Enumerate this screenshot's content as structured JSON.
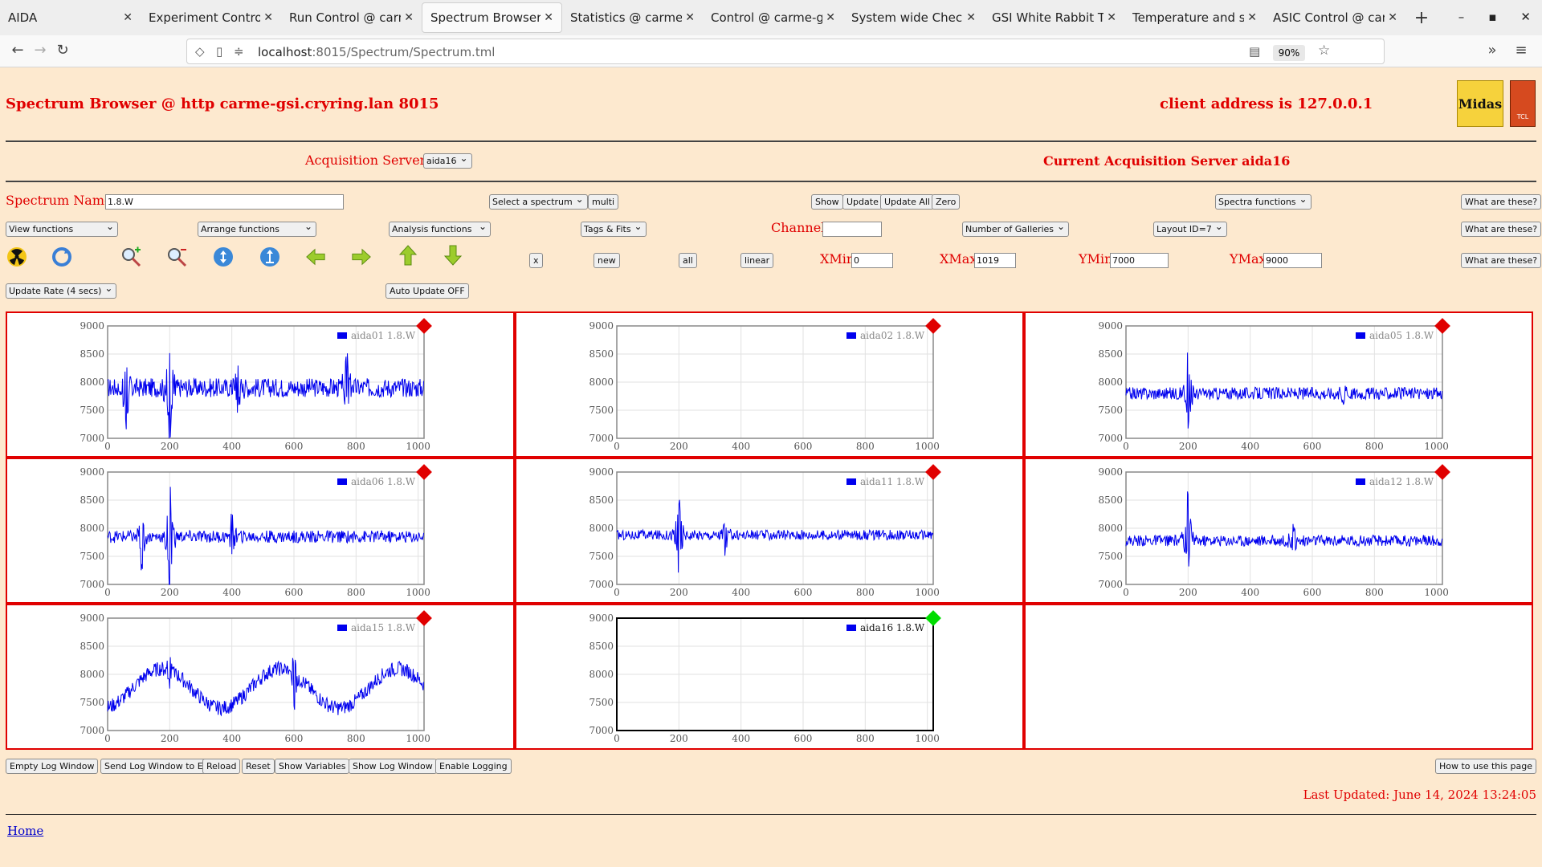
{
  "browser": {
    "tabs": [
      {
        "label": "AIDA",
        "active": false
      },
      {
        "label": "Experiment Control @",
        "active": false
      },
      {
        "label": "Run Control @ carme",
        "active": false
      },
      {
        "label": "Spectrum Browser @",
        "active": true
      },
      {
        "label": "Statistics @ carme-g",
        "active": false
      },
      {
        "label": "Control @ carme-gsi",
        "active": false
      },
      {
        "label": "System wide Checks",
        "active": false
      },
      {
        "label": "GSI White Rabbit Tim",
        "active": false
      },
      {
        "label": "Temperature and stat",
        "active": false
      },
      {
        "label": "ASIC Control @ carm",
        "active": false
      }
    ],
    "url_host": "localhost",
    "url_path": ":8015/Spectrum/Spectrum.tml",
    "zoom": "90%"
  },
  "header": {
    "title": "Spectrum Browser @ http carme-gsi.cryring.lan 8015",
    "client": "client address is 127.0.0.1",
    "logo_midas": "Midas",
    "logo_tcl": "TCL POWERED"
  },
  "server": {
    "label": "Acquisition Servers",
    "selected": "aida16",
    "current": "Current Acquisition Server aida16"
  },
  "controls": {
    "spectrum_name_label": "Spectrum Name:",
    "spectrum_name_value": "1.8.W",
    "select_spectrum": "Select a spectrum",
    "multi": "multi",
    "show": "Show",
    "update": "Update",
    "update_all": "Update All",
    "zero": "Zero",
    "spectra_functions": "Spectra functions",
    "what": "What are these?",
    "view_functions": "View functions",
    "arrange_functions": "Arrange functions",
    "analysis_functions": "Analysis functions",
    "tags_fits": "Tags & Fits",
    "channel_label": "Channel:",
    "channel_value": "",
    "num_galleries": "Number of Galleries",
    "layout_id": "Layout ID=7",
    "x_btn": "x",
    "new_btn": "new",
    "all_btn": "all",
    "linear_btn": "linear",
    "xmin_label": "XMin",
    "xmin_value": "0",
    "xmax_label": "XMax",
    "xmax_value": "1019",
    "ymin_label": "YMin",
    "ymin_value": "7000",
    "ymax_label": "YMax",
    "ymax_value": "9000",
    "update_rate": "Update Rate (4 secs)",
    "auto_update": "Auto Update OFF"
  },
  "icons": [
    "radiation-icon",
    "refresh-icon",
    "zoom-in-icon",
    "zoom-out-icon",
    "expand-vertical-icon",
    "compress-vertical-icon",
    "left-arrow-icon",
    "right-arrow-icon",
    "up-arrow-icon",
    "down-arrow-icon"
  ],
  "colors": {
    "accent_red": "#e00000",
    "series_blue": "#0000ee",
    "status_red": "#e00000",
    "status_green": "#00dd00",
    "page_bg": "#fde9cf"
  },
  "chart_data": [
    {
      "type": "line",
      "legend": "aida01 1.8.W",
      "status": "red",
      "ylim": [
        7000,
        9000
      ],
      "xlim": [
        0,
        1019
      ],
      "yticks": [
        7000,
        7500,
        8000,
        8500,
        9000
      ],
      "xticks": [
        0,
        200,
        400,
        600,
        800,
        1000
      ],
      "baseline": 7900,
      "noise": 170,
      "features": [
        [
          200,
          700,
          -900
        ],
        [
          60,
          400,
          -700
        ],
        [
          420,
          300,
          -300
        ],
        [
          770,
          500,
          -300
        ]
      ],
      "wave": 0
    },
    {
      "type": "line",
      "legend": "aida02 1.8.W",
      "status": "red",
      "ylim": [
        7000,
        9000
      ],
      "xlim": [
        0,
        1019
      ],
      "yticks": [
        7000,
        7500,
        8000,
        8500,
        9000
      ],
      "xticks": [
        0,
        200,
        400,
        600,
        800,
        1000
      ],
      "empty": true
    },
    {
      "type": "line",
      "legend": "aida05 1.8.W",
      "status": "red",
      "ylim": [
        7000,
        9000
      ],
      "xlim": [
        0,
        1019
      ],
      "yticks": [
        7000,
        7500,
        8000,
        8500,
        9000
      ],
      "xticks": [
        0,
        200,
        400,
        600,
        800,
        1000
      ],
      "baseline": 7800,
      "noise": 110,
      "features": [
        [
          200,
          700,
          -600
        ],
        [
          700,
          400,
          -100
        ]
      ],
      "wave": 0
    },
    {
      "type": "line",
      "legend": "aida06 1.8.W",
      "status": "red",
      "ylim": [
        7000,
        9000
      ],
      "xlim": [
        0,
        1019
      ],
      "yticks": [
        7000,
        7500,
        8000,
        8500,
        9000
      ],
      "xticks": [
        0,
        200,
        400,
        600,
        800,
        1000
      ],
      "baseline": 7850,
      "noise": 110,
      "features": [
        [
          200,
          800,
          -850
        ],
        [
          110,
          300,
          -500
        ],
        [
          400,
          300,
          -300
        ]
      ],
      "wave": 0
    },
    {
      "type": "line",
      "legend": "aida11 1.8.W",
      "status": "red",
      "ylim": [
        7000,
        9000
      ],
      "xlim": [
        0,
        1019
      ],
      "yticks": [
        7000,
        7500,
        8000,
        8500,
        9000
      ],
      "xticks": [
        0,
        200,
        400,
        600,
        800,
        1000
      ],
      "baseline": 7880,
      "noise": 90,
      "features": [
        [
          200,
          600,
          -600
        ],
        [
          350,
          200,
          -300
        ]
      ],
      "wave": 0
    },
    {
      "type": "line",
      "legend": "aida12 1.8.W",
      "status": "red",
      "ylim": [
        7000,
        9000
      ],
      "xlim": [
        0,
        1019
      ],
      "yticks": [
        7000,
        7500,
        8000,
        8500,
        9000
      ],
      "xticks": [
        0,
        200,
        400,
        600,
        800,
        1000
      ],
      "baseline": 7780,
      "noise": 100,
      "features": [
        [
          200,
          800,
          -450
        ],
        [
          540,
          200,
          -250
        ]
      ],
      "wave": 0
    },
    {
      "type": "line",
      "legend": "aida15 1.8.W",
      "status": "red",
      "ylim": [
        7000,
        9000
      ],
      "xlim": [
        0,
        1019
      ],
      "yticks": [
        7000,
        7500,
        8000,
        8500,
        9000
      ],
      "xticks": [
        0,
        200,
        400,
        600,
        800,
        1000
      ],
      "baseline": 7750,
      "noise": 130,
      "features": [
        [
          200,
          300,
          -200
        ],
        [
          600,
          300,
          -500
        ]
      ],
      "wave": 500
    },
    {
      "type": "line",
      "legend": "aida16 1.8.W",
      "status": "green",
      "ylim": [
        7000,
        9000
      ],
      "xlim": [
        0,
        1019
      ],
      "yticks": [
        7000,
        7500,
        8000,
        8500,
        9000
      ],
      "xticks": [
        0,
        200,
        400,
        600,
        800,
        1000
      ],
      "empty": true,
      "active": true
    }
  ],
  "log_buttons": [
    "Empty Log Window",
    "Send Log Window to ELog",
    "Reload",
    "Reset",
    "Show Variables",
    "Show Log Window",
    "Enable Logging"
  ],
  "how_to": "How to use this page",
  "last_updated": "Last Updated: June 14, 2024 13:24:05",
  "home": "Home"
}
